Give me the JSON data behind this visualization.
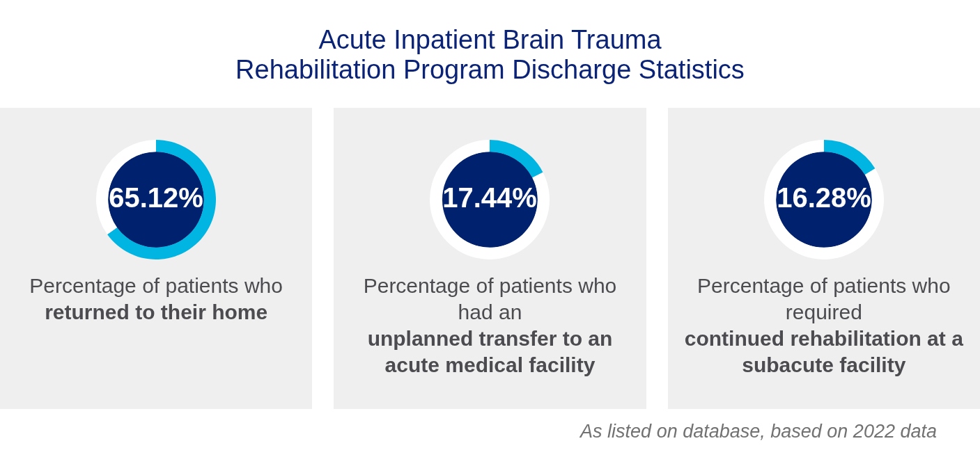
{
  "chart_data": [
    {
      "type": "other",
      "title": "Acute Inpatient Brain Trauma Rehabilitation Program Discharge Statistics"
    },
    {
      "type": "donut",
      "categories": [
        null,
        null
      ],
      "values": [
        65.12,
        34.88
      ],
      "colors": [
        "#00b5e2",
        "#ffffff"
      ],
      "value_labels": [
        "65.12%",
        null
      ],
      "annotations": [
        "Percentage of patients who",
        "returned to their home"
      ]
    },
    {
      "type": "donut",
      "categories": [
        null,
        null
      ],
      "values": [
        17.44,
        82.56
      ],
      "colors": [
        "#00b5e2",
        "#ffffff"
      ],
      "value_labels": [
        "17.44%",
        null
      ],
      "annotations": [
        "Percentage of patients who had an",
        "unplanned transfer to an acute medical facility"
      ]
    },
    {
      "type": "donut",
      "categories": [
        null,
        null
      ],
      "values": [
        16.28,
        83.72
      ],
      "colors": [
        "#00b5e2",
        "#ffffff"
      ],
      "value_labels": [
        "16.28%",
        null
      ],
      "annotations": [
        "Percentage of patients who required",
        "continued rehabilitation at a subacute facility",
        "As listed on database, based on 2022 data"
      ]
    }
  ]
}
